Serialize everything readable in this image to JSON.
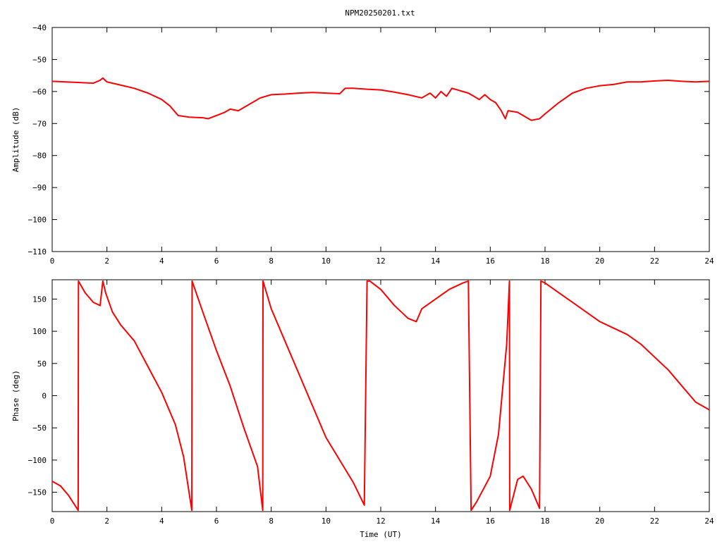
{
  "title": "NPM20250201.txt",
  "colors": {
    "series": "#ff0000",
    "axis": "#000000",
    "background": "#ffffff"
  },
  "chart_data": [
    {
      "type": "line",
      "ylabel": "Amplitude (dB)",
      "xlabel": "",
      "xlim": [
        0,
        24
      ],
      "ylim": [
        -110,
        -40
      ],
      "xticks": [
        0,
        2,
        4,
        6,
        8,
        10,
        12,
        14,
        16,
        18,
        20,
        22,
        24
      ],
      "xtick_labels": [
        "0",
        "2",
        "4",
        "6",
        "8",
        "10",
        "12",
        "14",
        "16",
        "18",
        "20",
        "22",
        "24"
      ],
      "yticks": [
        -110,
        -100,
        -90,
        -80,
        -70,
        -60,
        -50,
        -40
      ],
      "ytick_labels": [
        "−110",
        "−100",
        "−90",
        "−80",
        "−70",
        "−60",
        "−50",
        "−40"
      ],
      "grid": false,
      "series": [
        {
          "x": [
            0,
            0.5,
            1.0,
            1.5,
            1.75,
            1.85,
            2.0,
            2.5,
            3.0,
            3.5,
            4.0,
            4.3,
            4.6,
            5.0,
            5.5,
            5.7,
            6.0,
            6.3,
            6.5,
            6.8,
            7.2,
            7.6,
            8.0,
            8.5,
            9.0,
            9.5,
            10.0,
            10.5,
            10.7,
            11.0,
            11.5,
            12.0,
            12.5,
            13.0,
            13.5,
            13.8,
            14.0,
            14.2,
            14.4,
            14.6,
            14.8,
            15.0,
            15.2,
            15.4,
            15.6,
            15.8,
            16.0,
            16.2,
            16.4,
            16.55,
            16.65,
            17.0,
            17.5,
            17.8,
            18.0,
            18.5,
            19.0,
            19.5,
            20.0,
            20.5,
            21.0,
            21.5,
            22.0,
            22.5,
            23.0,
            23.5,
            24.0
          ],
          "y": [
            -56.8,
            -57.0,
            -57.2,
            -57.4,
            -56.5,
            -55.8,
            -57.0,
            -58.0,
            -59.0,
            -60.5,
            -62.5,
            -64.5,
            -67.5,
            -68.0,
            -68.2,
            -68.5,
            -67.5,
            -66.5,
            -65.5,
            -66.0,
            -64.0,
            -62.0,
            -61.0,
            -60.8,
            -60.5,
            -60.3,
            -60.5,
            -60.7,
            -59.0,
            -59.0,
            -59.3,
            -59.5,
            -60.2,
            -61.0,
            -62.0,
            -60.5,
            -62.0,
            -60.0,
            -61.5,
            -59.0,
            -59.5,
            -60.0,
            -60.5,
            -61.5,
            -62.5,
            -61.0,
            -62.5,
            -63.5,
            -66.0,
            -68.5,
            -66.0,
            -66.5,
            -69.0,
            -68.5,
            -67.0,
            -63.5,
            -60.5,
            -59.0,
            -58.2,
            -57.8,
            -57.0,
            -57.0,
            -56.7,
            -56.5,
            -56.8,
            -57.0,
            -56.8
          ]
        }
      ]
    },
    {
      "type": "line",
      "ylabel": "Phase (deg)",
      "xlabel": "Time (UT)",
      "xlim": [
        0,
        24
      ],
      "ylim": [
        -180,
        180
      ],
      "xticks": [
        0,
        2,
        4,
        6,
        8,
        10,
        12,
        14,
        16,
        18,
        20,
        22,
        24
      ],
      "xtick_labels": [
        "0",
        "2",
        "4",
        "6",
        "8",
        "10",
        "12",
        "14",
        "16",
        "18",
        "20",
        "22",
        "24"
      ],
      "yticks": [
        -150,
        -100,
        -50,
        0,
        50,
        100,
        150
      ],
      "ytick_labels": [
        "−150",
        "−100",
        "−50",
        "0",
        "50",
        "100",
        "150"
      ],
      "grid": false,
      "series": [
        {
          "x": [
            0,
            0.3,
            0.6,
            0.95,
            0.96,
            1.2,
            1.5,
            1.75,
            1.85,
            1.95,
            2.2,
            2.5,
            3.0,
            3.5,
            4.0,
            4.5,
            4.8,
            5.1,
            5.11,
            5.5,
            6.0,
            6.5,
            7.0,
            7.5,
            7.69,
            7.7,
            8.0,
            8.5,
            9.0,
            9.5,
            10.0,
            10.5,
            11.0,
            11.4,
            11.5,
            11.6,
            12.0,
            12.5,
            13.0,
            13.3,
            13.5,
            14.0,
            14.5,
            15.0,
            15.2,
            15.3,
            15.5,
            16.0,
            16.3,
            16.6,
            16.7,
            16.71,
            17.0,
            17.2,
            17.5,
            17.8,
            17.85,
            18.0,
            18.5,
            19.0,
            19.5,
            20.0,
            20.5,
            21.0,
            21.5,
            22.0,
            22.5,
            23.0,
            23.5,
            24.0
          ],
          "y": [
            -133,
            -140,
            -155,
            -178,
            178,
            160,
            145,
            140,
            178,
            160,
            130,
            110,
            85,
            45,
            5,
            -45,
            -95,
            -178,
            178,
            130,
            70,
            15,
            -50,
            -110,
            -178,
            178,
            135,
            85,
            35,
            -15,
            -65,
            -100,
            -135,
            -170,
            178,
            178,
            165,
            140,
            120,
            115,
            135,
            150,
            165,
            175,
            178,
            -178,
            -165,
            -125,
            -60,
            80,
            178,
            -178,
            -130,
            -125,
            -145,
            -175,
            178,
            175,
            160,
            145,
            130,
            115,
            105,
            95,
            80,
            60,
            40,
            15,
            -10,
            -22
          ]
        }
      ]
    }
  ]
}
